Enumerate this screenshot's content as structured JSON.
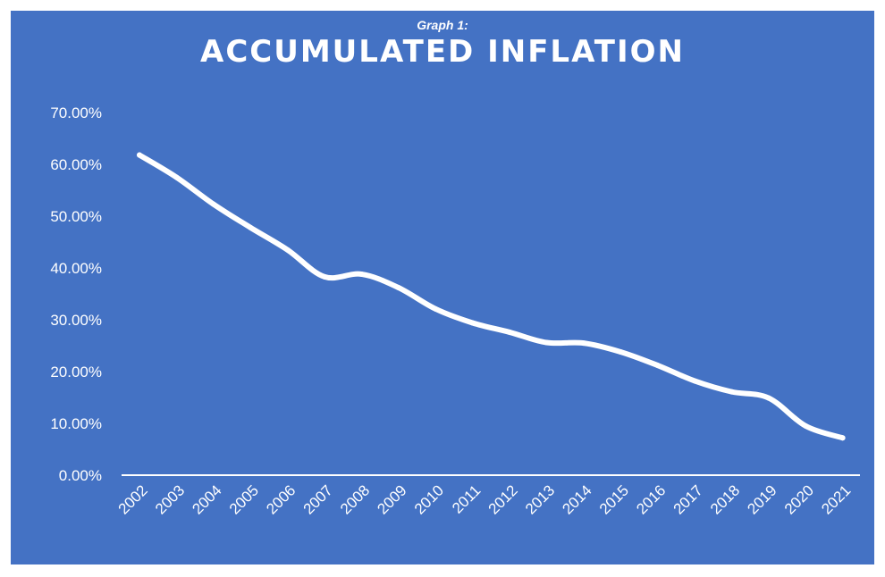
{
  "chart_data": {
    "type": "line",
    "subtitle": "Graph 1:",
    "title": "ACCUMULATED INFLATION",
    "xlabel": "",
    "ylabel": "",
    "categories": [
      "2002",
      "2003",
      "2004",
      "2005",
      "2006",
      "2007",
      "2008",
      "2009",
      "2010",
      "2011",
      "2012",
      "2013",
      "2014",
      "2015",
      "2016",
      "2017",
      "2018",
      "2019",
      "2020",
      "2021"
    ],
    "series": [
      {
        "values": [
          61.8,
          57.5,
          52.3,
          47.8,
          43.5,
          38.3,
          38.8,
          36.2,
          32.1,
          29.4,
          27.6,
          25.6,
          25.5,
          23.8,
          21.2,
          18.2,
          16.1,
          14.9,
          9.5,
          7.2
        ]
      }
    ],
    "ylim": [
      0,
      70
    ],
    "yticks": [
      "0.00%",
      "10.00%",
      "20.00%",
      "30.00%",
      "40.00%",
      "50.00%",
      "60.00%",
      "70.00%"
    ],
    "grid": false,
    "drop_lines": true,
    "colors": {
      "background": "#4472c4",
      "line": "#ffffff",
      "text": "#ffffff"
    }
  }
}
